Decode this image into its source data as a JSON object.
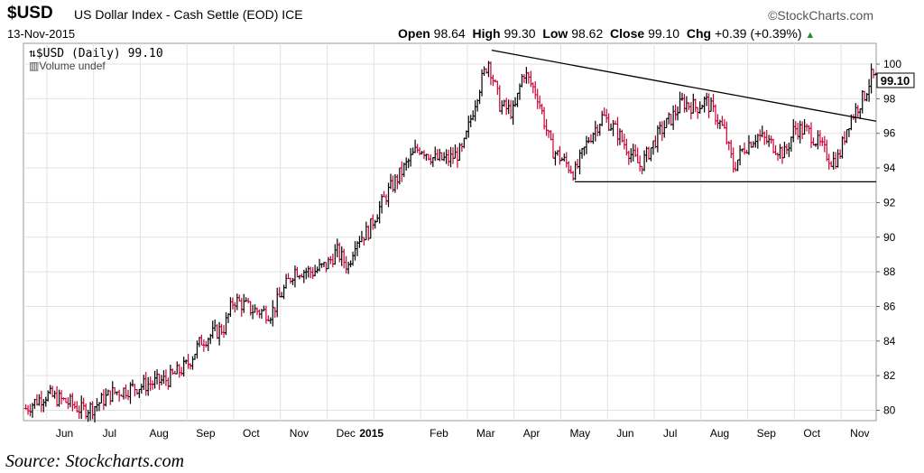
{
  "header": {
    "symbol": "$USD",
    "description": "US Dollar Index - Cash Settle (EOD)",
    "exchange": "ICE",
    "brand": "©StockCharts.com",
    "date": "13-Nov-2015",
    "ohlc": {
      "open_label": "Open",
      "open": "98.64",
      "high_label": "High",
      "high": "99.30",
      "low_label": "Low",
      "low": "98.62",
      "close_label": "Close",
      "close": "99.10",
      "chg_label": "Chg",
      "chg": "+0.39 (+0.39%)",
      "chg_arrow": "▲"
    }
  },
  "legend": {
    "series": "$USD (Daily) 99.10",
    "volume": "Volume undef"
  },
  "last_price_label": "99.10",
  "footer": "Source: Stockcharts.com",
  "colors": {
    "up": "#000000",
    "down": "#cc0033",
    "grid": "#e2e2e2",
    "trendline": "#000000"
  },
  "chart_data": {
    "type": "ohlc",
    "ylim": [
      79.4,
      101.2
    ],
    "yticks": [
      80,
      82,
      84,
      86,
      88,
      90,
      92,
      94,
      96,
      98,
      100
    ],
    "xticks": [
      {
        "label": "Jun",
        "t": 1.0
      },
      {
        "label": "Jul",
        "t": 2.0
      },
      {
        "label": "Aug",
        "t": 3.0
      },
      {
        "label": "Sep",
        "t": 4.0
      },
      {
        "label": "Oct",
        "t": 5.0
      },
      {
        "label": "Nov",
        "t": 6.0
      },
      {
        "label": "Dec",
        "t": 7.0
      },
      {
        "label": "2015",
        "t": 8.0,
        "bold": true
      },
      {
        "label": "Feb",
        "t": 9.0
      },
      {
        "label": "Mar",
        "t": 10.0
      },
      {
        "label": "Apr",
        "t": 11.0
      },
      {
        "label": "May",
        "t": 12.0
      },
      {
        "label": "Jun",
        "t": 13.0
      },
      {
        "label": "Jul",
        "t": 14.0
      },
      {
        "label": "Aug",
        "t": 15.0
      },
      {
        "label": "Sep",
        "t": 16.0
      },
      {
        "label": "Oct",
        "t": 17.0
      },
      {
        "label": "Nov",
        "t": 18.0
      }
    ],
    "xlim": [
      0.5,
      18.75
    ],
    "anchors": [
      [
        0.55,
        80.1
      ],
      [
        0.8,
        80.6
      ],
      [
        1.0,
        80.9
      ],
      [
        1.5,
        80.4
      ],
      [
        1.75,
        80.0
      ],
      [
        2.0,
        80.2
      ],
      [
        2.4,
        81.0
      ],
      [
        3.0,
        81.4
      ],
      [
        3.6,
        81.8
      ],
      [
        4.0,
        82.6
      ],
      [
        4.3,
        84.0
      ],
      [
        4.8,
        84.8
      ],
      [
        5.0,
        86.4
      ],
      [
        5.4,
        85.8
      ],
      [
        5.8,
        85.6
      ],
      [
        6.0,
        86.6
      ],
      [
        6.3,
        88.1
      ],
      [
        6.7,
        88.0
      ],
      [
        7.0,
        88.4
      ],
      [
        7.2,
        89.2
      ],
      [
        7.45,
        88.3
      ],
      [
        7.6,
        89.8
      ],
      [
        7.9,
        90.4
      ],
      [
        8.0,
        91.1
      ],
      [
        8.3,
        92.6
      ],
      [
        8.6,
        93.8
      ],
      [
        8.9,
        95.0
      ],
      [
        9.0,
        95.2
      ],
      [
        9.3,
        94.5
      ],
      [
        9.6,
        94.5
      ],
      [
        9.9,
        95.0
      ],
      [
        10.2,
        98.2
      ],
      [
        10.45,
        100.2
      ],
      [
        10.7,
        97.6
      ],
      [
        11.0,
        97.2
      ],
      [
        11.2,
        99.6
      ],
      [
        11.5,
        98.2
      ],
      [
        11.8,
        95.1
      ],
      [
        12.1,
        94.3
      ],
      [
        12.3,
        93.7
      ],
      [
        12.6,
        95.7
      ],
      [
        12.9,
        97.0
      ],
      [
        13.2,
        96.1
      ],
      [
        13.5,
        94.8
      ],
      [
        13.7,
        94.1
      ],
      [
        13.9,
        95.0
      ],
      [
        14.1,
        96.0
      ],
      [
        14.4,
        97.0
      ],
      [
        14.6,
        97.8
      ],
      [
        14.9,
        97.5
      ],
      [
        15.1,
        97.9
      ],
      [
        15.3,
        97.1
      ],
      [
        15.5,
        96.1
      ],
      [
        15.7,
        94.0
      ],
      [
        15.9,
        95.1
      ],
      [
        16.2,
        95.9
      ],
      [
        16.5,
        95.4
      ],
      [
        16.8,
        94.8
      ],
      [
        17.0,
        96.3
      ],
      [
        17.3,
        96.1
      ],
      [
        17.55,
        95.3
      ],
      [
        17.8,
        94.4
      ],
      [
        17.95,
        94.6
      ],
      [
        18.15,
        96.6
      ],
      [
        18.3,
        97.3
      ],
      [
        18.5,
        98.2
      ],
      [
        18.65,
        99.3
      ],
      [
        18.75,
        99.1
      ]
    ],
    "trendlines": [
      {
        "name": "descending-resistance",
        "from": [
          10.52,
          100.8
        ],
        "to": [
          18.75,
          96.7
        ]
      },
      {
        "name": "support",
        "from": [
          12.3,
          93.2
        ],
        "to": [
          18.75,
          93.2
        ]
      }
    ]
  }
}
